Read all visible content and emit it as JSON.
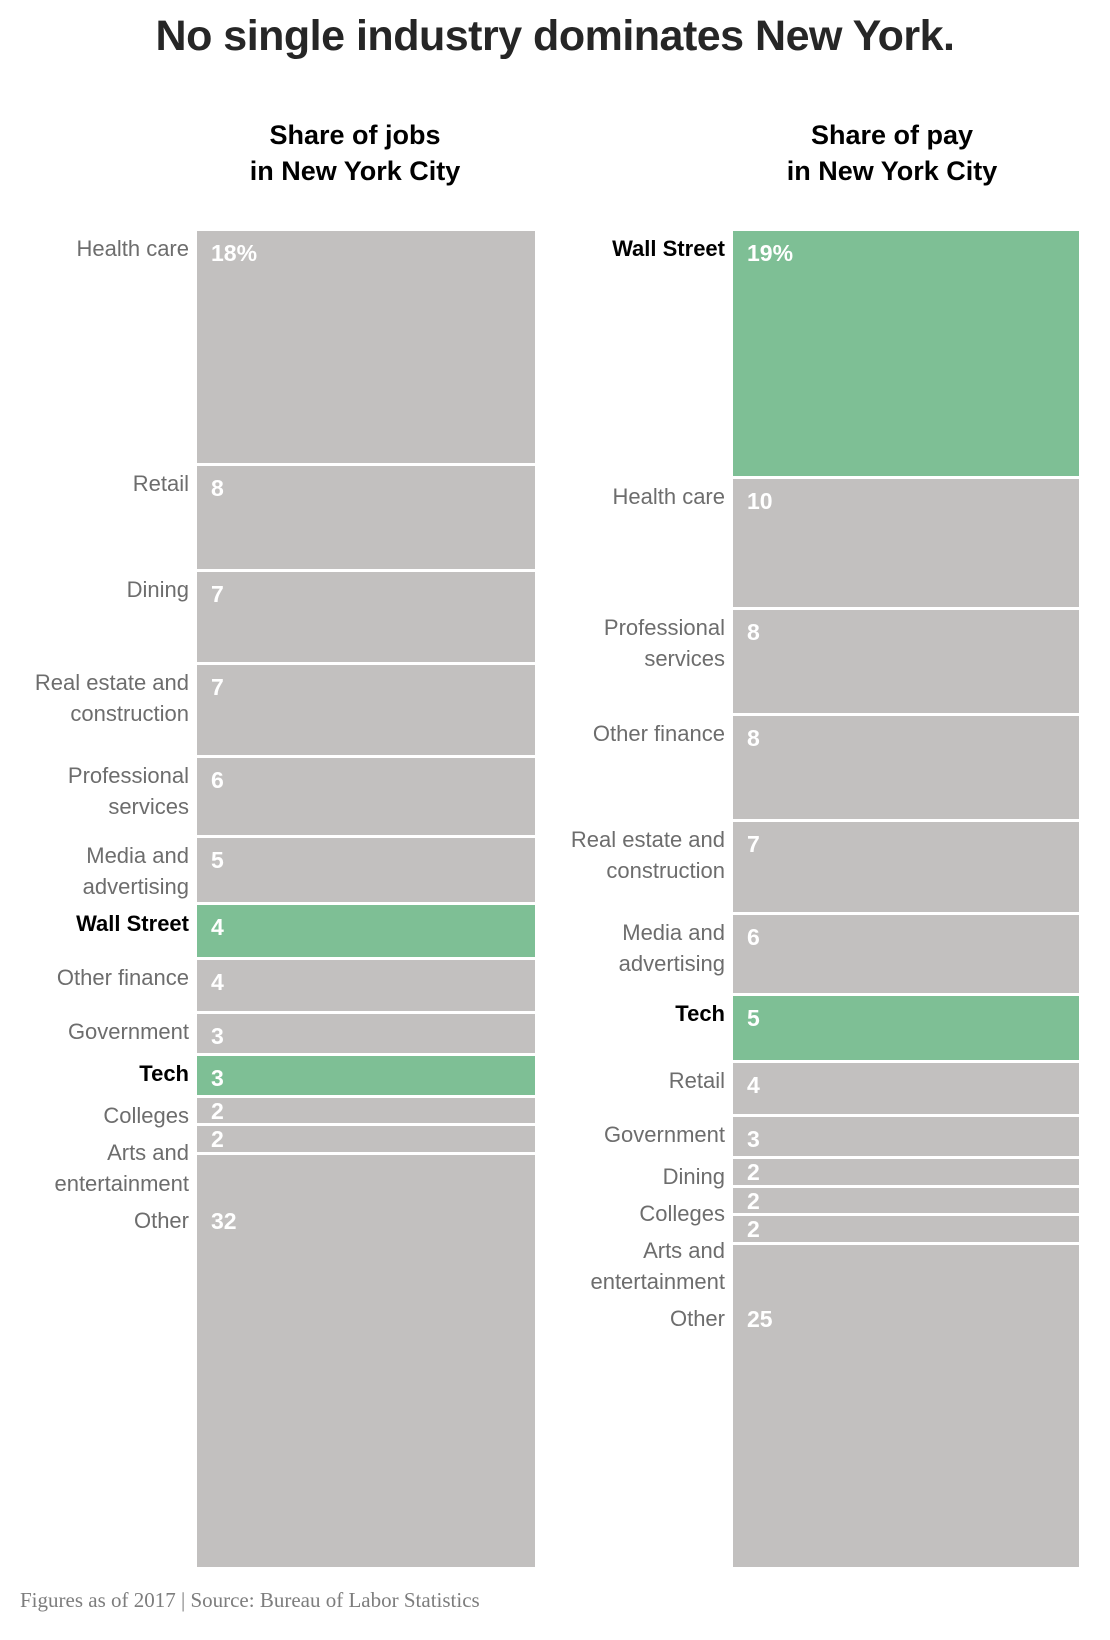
{
  "page_title": "No single industry dominates New York.",
  "footer": {
    "text": "Figures as of 2017 | Source: Bureau of Labor Statistics"
  },
  "colors": {
    "bar_gray": "#c2c0bf",
    "highlight_green": "#7ebf95",
    "label_gray": "#6d6d6d",
    "value_white": "#ffffff",
    "title_dark": "#262626",
    "footer_gray": "#7d7d7d"
  },
  "chart_data": [
    {
      "type": "bar",
      "id": "jobs",
      "header_line1": "Share of jobs",
      "header_line2": "in New York City",
      "orientation": "vertical_stacked_single_column",
      "units": "percent of total jobs",
      "total": 101,
      "categories": [
        "Health care",
        "Retail",
        "Dining",
        "Real estate and construction",
        "Professional services",
        "Media and advertising",
        "Wall Street",
        "Other finance",
        "Government",
        "Tech",
        "Colleges",
        "Arts and entertainment",
        "Other"
      ],
      "values": [
        18,
        8,
        7,
        7,
        6,
        5,
        4,
        4,
        3,
        3,
        2,
        2,
        32
      ],
      "value_labels": [
        "18%",
        "8",
        "7",
        "7",
        "6",
        "5",
        "4",
        "4",
        "3",
        "3",
        "2",
        "2",
        "32"
      ],
      "highlighted": [
        "Wall Street",
        "Tech"
      ],
      "label_wrap": [
        [
          "Health care"
        ],
        [
          "Retail"
        ],
        [
          "Dining"
        ],
        [
          "Real estate and",
          "construction"
        ],
        [
          "Professional",
          "services"
        ],
        [
          "Media and",
          "advertising"
        ],
        [
          "Wall Street"
        ],
        [
          "Other finance"
        ],
        [
          "Government"
        ],
        [
          "Tech"
        ],
        [
          "Colleges"
        ],
        [
          "Arts and",
          "entertainment"
        ],
        [
          "Other"
        ]
      ]
    },
    {
      "type": "bar",
      "id": "pay",
      "header_line1": "Share of pay",
      "header_line2": "in New York City",
      "orientation": "vertical_stacked_single_column",
      "units": "percent of total pay",
      "total": 101,
      "categories": [
        "Wall Street",
        "Health care",
        "Professional services",
        "Other finance",
        "Real estate and construction",
        "Media and advertising",
        "Tech",
        "Retail",
        "Government",
        "Dining",
        "Colleges",
        "Arts and entertainment",
        "Other"
      ],
      "values": [
        19,
        10,
        8,
        8,
        7,
        6,
        5,
        4,
        3,
        2,
        2,
        2,
        25
      ],
      "value_labels": [
        "19%",
        "10",
        "8",
        "8",
        "7",
        "6",
        "5",
        "4",
        "3",
        "2",
        "2",
        "2",
        "25"
      ],
      "highlighted": [
        "Wall Street",
        "Tech"
      ],
      "label_wrap": [
        [
          "Wall Street"
        ],
        [
          "Health care"
        ],
        [
          "Professional",
          "services"
        ],
        [
          "Other finance"
        ],
        [
          "Real estate and",
          "construction"
        ],
        [
          "Media and",
          "advertising"
        ],
        [
          "Tech"
        ],
        [
          "Retail"
        ],
        [
          "Government"
        ],
        [
          "Dining"
        ],
        [
          "Colleges"
        ],
        [
          "Arts and",
          "entertainment"
        ],
        [
          "Other"
        ]
      ]
    }
  ]
}
